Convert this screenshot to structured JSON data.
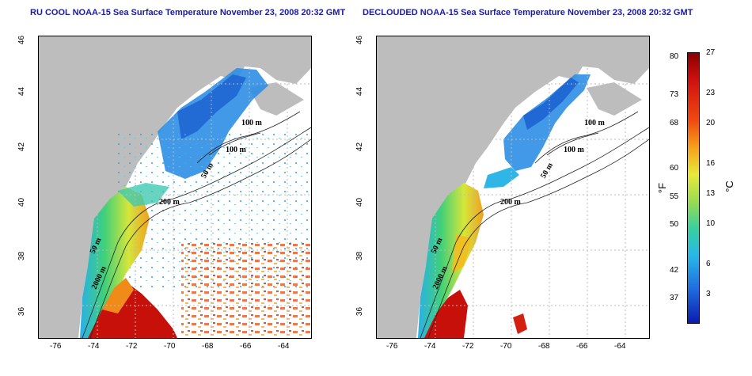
{
  "left_map": {
    "title": "RU COOL NOAA-15 Sea Surface Temperature November 23, 2008 20:32 GMT",
    "y_ticks": [
      "46",
      "44",
      "42",
      "40",
      "38",
      "36"
    ],
    "x_ticks": [
      "-76",
      "-74",
      "-72",
      "-70",
      "-68",
      "-66",
      "-64"
    ],
    "contour_labels": [
      "100 m",
      "100 m",
      "50 m",
      "200 m",
      "50 m",
      "2000 m"
    ]
  },
  "right_map": {
    "title": "DECLOUDED NOAA-15 Sea Surface Temperature November 23, 2008 20:32 GMT",
    "y_ticks": [
      "46",
      "44",
      "42",
      "40",
      "38",
      "36"
    ],
    "x_ticks": [
      "-76",
      "-74",
      "-72",
      "-70",
      "-68",
      "-66",
      "-64"
    ],
    "contour_labels": [
      "100 m",
      "100 m",
      "50 m",
      "200 m",
      "50 m",
      "2000 m"
    ]
  },
  "colorbar": {
    "fahrenheit_label": "°F",
    "celsius_label": "°C",
    "fahrenheit_ticks": [
      "80",
      "73",
      "68",
      "60",
      "55",
      "50",
      "42",
      "37"
    ],
    "celsius_ticks": [
      "27",
      "23",
      "20",
      "16",
      "13",
      "10",
      "6",
      "3"
    ],
    "celsius_range": [
      0,
      27
    ]
  },
  "colors": {
    "land": "#bdbdbd",
    "title": "#1a1aa6",
    "cold": "#08308c",
    "warm": "#a00000"
  }
}
